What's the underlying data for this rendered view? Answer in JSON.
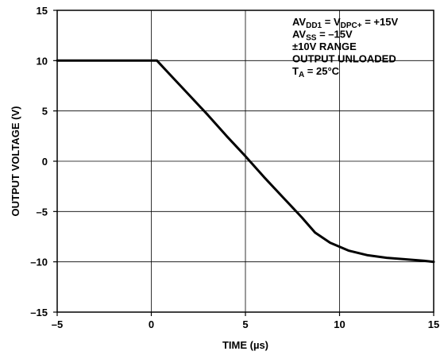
{
  "chart_data": {
    "type": "line",
    "xlabel": "TIME (µs)",
    "ylabel": "OUTPUT VOLTAGE (V)",
    "xlim": [
      -5,
      15
    ],
    "ylim": [
      -15,
      15
    ],
    "xticks": [
      -5,
      0,
      5,
      10,
      15
    ],
    "yticks": [
      -15,
      -10,
      -5,
      0,
      5,
      10,
      15
    ],
    "xtick_labels": [
      "–5",
      "0",
      "5",
      "10",
      "15"
    ],
    "ytick_labels": [
      "–15",
      "–10",
      "–5",
      "0",
      "5",
      "10",
      "15"
    ],
    "grid": true,
    "series": [
      {
        "x": [
          -5,
          0.3,
          1.0,
          2.0,
          3.0,
          4.0,
          5.0,
          6.0,
          7.0,
          8.0,
          8.7,
          9.5,
          10.5,
          11.5,
          12.5,
          13.5,
          14.5,
          15
        ],
        "y": [
          10,
          10,
          8.6,
          6.6,
          4.6,
          2.5,
          0.5,
          -1.6,
          -3.6,
          -5.6,
          -7.1,
          -8.1,
          -8.9,
          -9.35,
          -9.6,
          -9.75,
          -9.9,
          -10
        ]
      }
    ],
    "annotation_lines": [
      {
        "text": "AV",
        "sub": "DD1",
        "text2": " = V",
        "sub2": "DPC+",
        "text3": " = +15V"
      },
      {
        "text": "AV",
        "sub": "SS",
        "text2": " = –15V"
      },
      {
        "text": "±10V RANGE"
      },
      {
        "text": "OUTPUT UNLOADED"
      },
      {
        "text": "T",
        "sub": "A",
        "text2": " = 25°C"
      }
    ]
  }
}
